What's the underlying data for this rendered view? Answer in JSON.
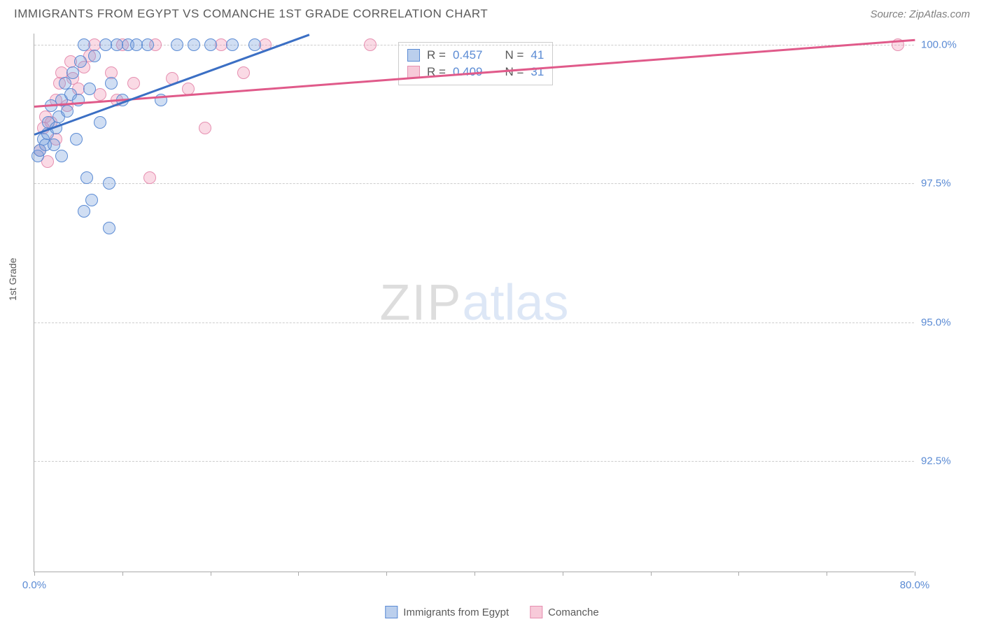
{
  "header": {
    "title": "IMMIGRANTS FROM EGYPT VS COMANCHE 1ST GRADE CORRELATION CHART",
    "source": "Source: ZipAtlas.com"
  },
  "chart": {
    "type": "scatter",
    "y_label": "1st Grade",
    "xlim": [
      0,
      80
    ],
    "ylim": [
      90.5,
      100.2
    ],
    "x_ticks": [
      0,
      8,
      16,
      24,
      32,
      40,
      48,
      56,
      64,
      72,
      80
    ],
    "x_tick_labels": {
      "0": "0.0%",
      "80": "80.0%"
    },
    "y_grid": [
      {
        "v": 100.0,
        "label": "100.0%"
      },
      {
        "v": 97.5,
        "label": "97.5%"
      },
      {
        "v": 95.0,
        "label": "95.0%"
      },
      {
        "v": 92.5,
        "label": "92.5%"
      }
    ],
    "grid_color": "#cccccc",
    "background_color": "#ffffff",
    "series_a": {
      "name": "Immigrants from Egypt",
      "color_fill": "rgba(120,160,220,0.35)",
      "color_stroke": "#5b8bd4",
      "line_color": "#3b6fc4",
      "R": "0.457",
      "N": "41",
      "trend": {
        "x1": 0,
        "y1": 98.4,
        "x2": 25,
        "y2": 100.2
      },
      "points": [
        [
          0.3,
          98.0
        ],
        [
          0.5,
          98.1
        ],
        [
          0.8,
          98.3
        ],
        [
          1.0,
          98.2
        ],
        [
          1.2,
          98.4
        ],
        [
          1.3,
          98.6
        ],
        [
          1.5,
          98.9
        ],
        [
          2.0,
          98.5
        ],
        [
          2.2,
          98.7
        ],
        [
          2.5,
          99.0
        ],
        [
          2.8,
          99.3
        ],
        [
          3.0,
          98.8
        ],
        [
          3.3,
          99.1
        ],
        [
          3.5,
          99.5
        ],
        [
          4.0,
          99.0
        ],
        [
          4.2,
          99.7
        ],
        [
          4.5,
          100.0
        ],
        [
          5.0,
          99.2
        ],
        [
          5.5,
          99.8
        ],
        [
          6.0,
          98.6
        ],
        [
          6.5,
          100.0
        ],
        [
          7.0,
          99.3
        ],
        [
          7.5,
          100.0
        ],
        [
          8.5,
          100.0
        ],
        [
          9.3,
          100.0
        ],
        [
          10.3,
          100.0
        ],
        [
          11.5,
          99.0
        ],
        [
          13.0,
          100.0
        ],
        [
          14.5,
          100.0
        ],
        [
          16.0,
          100.0
        ],
        [
          18.0,
          100.0
        ],
        [
          20.0,
          100.0
        ],
        [
          5.2,
          97.2
        ],
        [
          6.8,
          96.7
        ],
        [
          6.8,
          97.5
        ],
        [
          4.8,
          97.6
        ],
        [
          2.5,
          98.0
        ],
        [
          1.8,
          98.2
        ],
        [
          3.8,
          98.3
        ],
        [
          8.0,
          99.0
        ],
        [
          4.5,
          97.0
        ]
      ]
    },
    "series_b": {
      "name": "Comanche",
      "color_fill": "rgba(240,150,180,0.35)",
      "color_stroke": "#e68fb0",
      "line_color": "#e05a8a",
      "R": "0.409",
      "N": "31",
      "trend": {
        "x1": 0,
        "y1": 98.9,
        "x2": 80,
        "y2": 100.1
      },
      "points": [
        [
          0.5,
          98.1
        ],
        [
          0.8,
          98.5
        ],
        [
          1.0,
          98.7
        ],
        [
          1.5,
          98.6
        ],
        [
          2.0,
          99.0
        ],
        [
          2.3,
          99.3
        ],
        [
          2.5,
          99.5
        ],
        [
          3.0,
          98.9
        ],
        [
          3.5,
          99.4
        ],
        [
          4.0,
          99.2
        ],
        [
          4.5,
          99.6
        ],
        [
          5.0,
          99.8
        ],
        [
          5.5,
          100.0
        ],
        [
          6.0,
          99.1
        ],
        [
          7.0,
          99.5
        ],
        [
          8.0,
          100.0
        ],
        [
          9.0,
          99.3
        ],
        [
          11.0,
          100.0
        ],
        [
          12.5,
          99.4
        ],
        [
          14.0,
          99.2
        ],
        [
          15.5,
          98.5
        ],
        [
          17.0,
          100.0
        ],
        [
          19.0,
          99.5
        ],
        [
          21.0,
          100.0
        ],
        [
          30.5,
          100.0
        ],
        [
          10.5,
          97.6
        ],
        [
          1.2,
          97.9
        ],
        [
          2.0,
          98.3
        ],
        [
          3.3,
          99.7
        ],
        [
          7.5,
          99.0
        ],
        [
          78.5,
          100.0
        ]
      ]
    }
  },
  "watermark": {
    "part1": "ZIP",
    "part2": "atlas"
  },
  "legend": {
    "a": "Immigrants from Egypt",
    "b": "Comanche"
  },
  "stats_labels": {
    "R": "R =",
    "N": "N ="
  }
}
